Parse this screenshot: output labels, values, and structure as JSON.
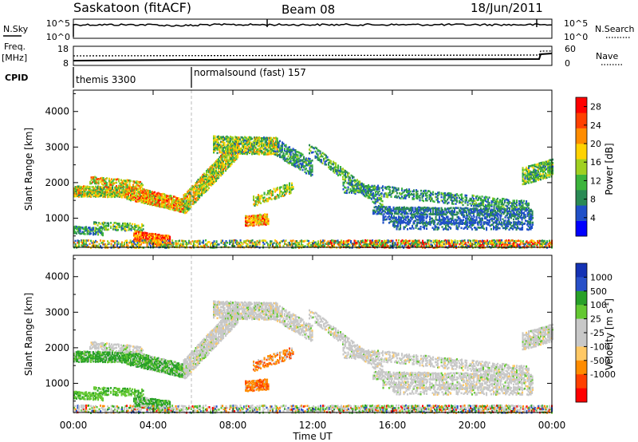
{
  "header": {
    "station": "Saskatoon (fitACF)",
    "beam": "Beam 08",
    "date": "18/Jun/2011"
  },
  "noise_panel": {
    "left_label": "N.Sky",
    "left_ticks": [
      "10^5",
      "10^0"
    ],
    "right_ticks": [
      "10^5",
      "10^0"
    ],
    "right_label": "N.Search"
  },
  "freq_panel": {
    "left_label_1": "Freq.",
    "left_label_2": "[MHz]",
    "left_ticks": [
      "18",
      "8"
    ],
    "right_ticks": [
      "60",
      "0"
    ],
    "right_label": "Nave"
  },
  "cpid_panel": {
    "label": "CPID",
    "entries": [
      {
        "text": "themis 3300",
        "start_hour": 0
      },
      {
        "text": "normalsound (fast) 157",
        "start_hour": 6
      }
    ]
  },
  "colors": {
    "power": [
      "#0000ff",
      "#2050c8",
      "#2a8a55",
      "#3cb43c",
      "#a0d020",
      "#ffd200",
      "#ff8c00",
      "#ff4000",
      "#ff0000"
    ],
    "velocity": [
      "#ff0000",
      "#ff4000",
      "#ff8c00",
      "#ffc864",
      "#c8c8c8",
      "#c8c8c8",
      "#64c832",
      "#28a028",
      "#2850c8",
      "#1432b4"
    ]
  },
  "chart_data": [
    {
      "type": "heatmap",
      "name": "power",
      "ylabel": "Slant Range [km]",
      "y_ticks": [
        1000,
        2000,
        3000,
        4000
      ],
      "ylim": [
        180,
        4600
      ],
      "xlim": [
        0,
        24
      ],
      "colorbar": {
        "label": "Power [dB]",
        "ticks": [
          "4",
          "8",
          "12",
          "16",
          "20",
          "24",
          "28"
        ],
        "range": [
          0,
          30
        ]
      }
    },
    {
      "type": "heatmap",
      "name": "velocity",
      "ylabel": "Slant Range [km]",
      "y_ticks": [
        1000,
        2000,
        3000,
        4000
      ],
      "ylim": [
        180,
        4600
      ],
      "xlim": [
        0,
        24
      ],
      "xlabel": "Time UT",
      "x_ticks": [
        "00:00",
        "04:00",
        "08:00",
        "12:00",
        "16:00",
        "20:00",
        "00:00"
      ],
      "colorbar": {
        "label": "Velocity [m s^-1]",
        "ticks": [
          "1000",
          "500",
          "100",
          "25",
          "-25",
          "-100",
          "-500",
          "-1000"
        ]
      }
    }
  ]
}
